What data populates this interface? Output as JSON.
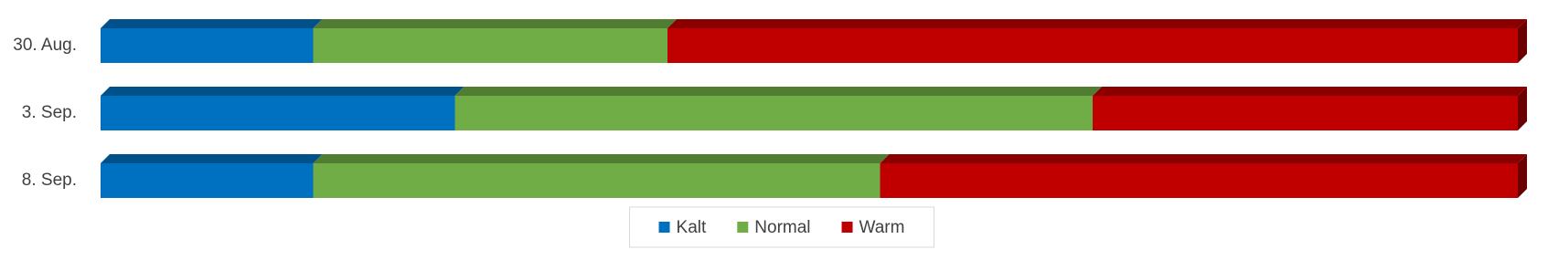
{
  "chart_data": {
    "type": "stacked-bar-3d",
    "categories": [
      "30. Aug.",
      "3. Sep.",
      "8. Sep."
    ],
    "series": [
      {
        "name": "Kalt",
        "color": "#0070c0",
        "values": [
          15,
          25,
          15
        ]
      },
      {
        "name": "Normal",
        "color": "#70ad47",
        "values": [
          25,
          45,
          40
        ]
      },
      {
        "name": "Warm",
        "color": "#c00000",
        "values": [
          60,
          30,
          45
        ]
      }
    ],
    "xlim": [
      0,
      100
    ],
    "legend": "bottom"
  }
}
